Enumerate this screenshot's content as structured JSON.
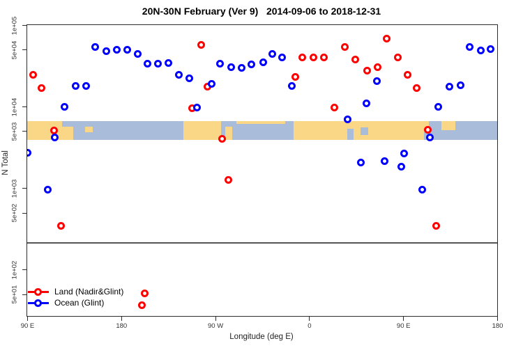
{
  "title": "20N-30N February (Ver 9)   2014-09-06 to 2018-12-31",
  "chart_data": {
    "type": "scatter",
    "title": "20N-30N February (Ver 9)   2014-09-06 to 2018-12-31",
    "xlabel": "Longitude (deg E)",
    "ylabel": "N Total",
    "y_scale": "log",
    "x_range_deg": [
      90,
      540
    ],
    "y_range": [
      27,
      100000
    ],
    "x_ticks": [
      {
        "lon": 90,
        "label": "90 E"
      },
      {
        "lon": 180,
        "label": "180"
      },
      {
        "lon": 270,
        "label": "90 W"
      },
      {
        "lon": 360,
        "label": "0"
      },
      {
        "lon": 450,
        "label": "90 E"
      },
      {
        "lon": 540,
        "label": "180"
      }
    ],
    "y_ticks": [
      {
        "v": 100000,
        "label": "1e+05"
      },
      {
        "v": 50000,
        "label": "5e+04"
      },
      {
        "v": 10000,
        "label": "1e+04"
      },
      {
        "v": 5000,
        "label": "5e+03"
      },
      {
        "v": 1000,
        "label": "1e+03"
      },
      {
        "v": 500,
        "label": "5e+02"
      },
      {
        "v": 100,
        "label": "1e+02"
      },
      {
        "v": 50,
        "label": "5e+01"
      }
    ],
    "threshold_line_n": 215,
    "legend": {
      "position": "bottom-left",
      "items": [
        {
          "label": "Land (Nadir&Glint)",
          "color": "#ff0000"
        },
        {
          "label": "Ocean (Glint)",
          "color": "#0000ff"
        }
      ]
    },
    "map_band": {
      "n_top": 6700,
      "n_bottom": 3900,
      "ocean_color": "#a9bcd9",
      "land_color": "#fad687",
      "land_segments": [
        {
          "lon1": 90,
          "lon2": 134.1,
          "t": 0,
          "b": 1
        },
        {
          "lon1": 145.4,
          "lon2": 152.8,
          "t": 0.3,
          "b": 0.6
        },
        {
          "lon1": 239.6,
          "lon2": 275.6,
          "t": 0,
          "b": 1
        },
        {
          "lon1": 279.6,
          "lon2": 286.3,
          "t": 0.3,
          "b": 1
        },
        {
          "lon1": 290.3,
          "lon2": 337.0,
          "t": 0,
          "b": 0.15
        },
        {
          "lon1": 345.1,
          "lon2": 474.6,
          "t": 0,
          "b": 1
        },
        {
          "lon1": 486.6,
          "lon2": 500.0,
          "t": 0,
          "b": 0.5
        }
      ],
      "ocean_patches": [
        {
          "lon1": 123.5,
          "lon2": 134.1,
          "t": 0,
          "b": 0.3
        },
        {
          "lon1": 396.5,
          "lon2": 402.5,
          "t": 0.4,
          "b": 1
        },
        {
          "lon1": 409.2,
          "lon2": 416.5,
          "t": 0.35,
          "b": 0.75
        },
        {
          "lon1": 470.0,
          "lon2": 474.6,
          "t": 0.6,
          "b": 1
        }
      ]
    },
    "series": [
      {
        "name": "Land (Nadir&Glint)",
        "color": "#ff0000",
        "points": [
          [
            96.0,
            24300
          ],
          [
            104.0,
            17000
          ],
          [
            115.4,
            5120
          ],
          [
            122.7,
            345
          ],
          [
            199.5,
            36.6
          ],
          [
            202.8,
            51.2
          ],
          [
            248.2,
            9620
          ],
          [
            256.3,
            57600
          ],
          [
            262.9,
            17700
          ],
          [
            276.3,
            4040
          ],
          [
            282.3,
            1270
          ],
          [
            346.4,
            22900
          ],
          [
            353.7,
            39700
          ],
          [
            364.4,
            40400
          ],
          [
            374.4,
            40400
          ],
          [
            383.8,
            9800
          ],
          [
            393.8,
            54300
          ],
          [
            403.8,
            38100
          ],
          [
            415.2,
            27800
          ],
          [
            425.2,
            30700
          ],
          [
            434.5,
            68800
          ],
          [
            444.6,
            39700
          ],
          [
            453.9,
            24700
          ],
          [
            462.6,
            17000
          ],
          [
            473.9,
            5220
          ],
          [
            481.3,
            345
          ]
        ]
      },
      {
        "name": "Ocean (Glint)",
        "color": "#0000ff",
        "points": [
          [
            90.6,
            2730
          ],
          [
            109.4,
            962
          ],
          [
            116.7,
            4210
          ],
          [
            125.4,
            10000
          ],
          [
            136.1,
            18000
          ],
          [
            146.1,
            18000
          ],
          [
            155.4,
            54300
          ],
          [
            165.5,
            48300
          ],
          [
            175.5,
            50200
          ],
          [
            185.5,
            50200
          ],
          [
            195.5,
            43800
          ],
          [
            205.5,
            33900
          ],
          [
            215.5,
            33900
          ],
          [
            224.9,
            34500
          ],
          [
            234.9,
            24300
          ],
          [
            244.9,
            22400
          ],
          [
            252.3,
            9800
          ],
          [
            266.9,
            19100
          ],
          [
            274.9,
            33900
          ],
          [
            285.0,
            30700
          ],
          [
            295.0,
            30100
          ],
          [
            304.4,
            33200
          ],
          [
            315.7,
            35200
          ],
          [
            324.4,
            44600
          ],
          [
            333.7,
            39700
          ],
          [
            343.1,
            18000
          ],
          [
            396.5,
            7010
          ],
          [
            409.2,
            2070
          ],
          [
            414.5,
            11000
          ],
          [
            424.6,
            20700
          ],
          [
            431.9,
            2150
          ],
          [
            447.9,
            1840
          ],
          [
            450.6,
            2670
          ],
          [
            467.9,
            962
          ],
          [
            475.9,
            4210
          ],
          [
            483.9,
            10000
          ],
          [
            494.0,
            17700
          ],
          [
            504.7,
            18400
          ],
          [
            513.3,
            54300
          ],
          [
            524.0,
            49200
          ],
          [
            533.4,
            51200
          ]
        ]
      }
    ]
  }
}
